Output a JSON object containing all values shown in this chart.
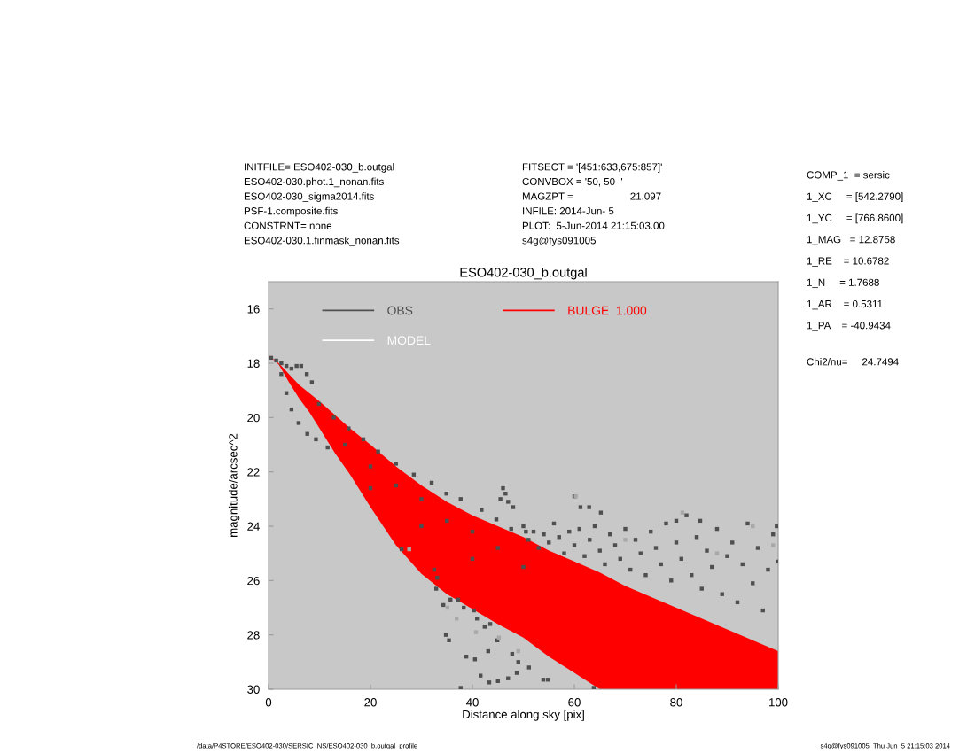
{
  "chart_data": {
    "type": "scatter",
    "title": "ESO402-030_b.outgal",
    "xlabel": "Distance along sky [pix]",
    "ylabel": "magnitude/arcsec^2",
    "xlim": [
      0,
      100
    ],
    "xticks": [
      0,
      20,
      40,
      60,
      80,
      100
    ],
    "ylim": [
      30,
      15
    ],
    "yticks": [
      16,
      18,
      20,
      22,
      24,
      26,
      28,
      30
    ],
    "legend": "top left",
    "series": [
      {
        "name": "OBS",
        "marker": "square",
        "color": "#4f4f4f",
        "x": [
          0.5,
          1.5,
          2.5,
          3.5,
          4.5,
          5.5,
          6.4,
          7.5,
          8.5,
          9.9,
          2.5,
          3.5,
          4.5,
          5.9,
          7.6,
          9.3,
          11.6,
          12.8,
          15.7,
          18.6,
          21.5,
          25,
          28.5,
          32,
          34.9,
          37.7,
          41.8,
          44.7,
          47.6,
          50.5,
          45.5,
          46,
          46.5,
          47,
          48,
          15,
          20,
          25,
          30,
          35,
          40,
          45,
          20,
          30,
          40,
          50,
          26.1,
          32.5,
          33.1,
          32.9,
          34.3,
          35.7,
          34.8,
          35.4,
          38.8,
          40.5,
          41.6,
          43.3,
          45,
          43.1,
          42.4,
          43.5,
          44.9,
          47.8,
          49,
          48.7,
          47,
          37.7,
          40.9,
          38.3,
          37.2,
          40.3,
          51.1,
          53.9,
          54.8,
          63.8,
          50,
          51,
          52,
          53,
          54,
          55,
          56,
          57,
          58,
          59,
          60,
          60,
          61,
          62,
          63,
          64,
          65,
          66,
          67,
          68,
          69,
          70,
          71,
          72,
          73,
          74,
          75,
          76,
          77,
          78,
          79,
          80,
          81,
          82,
          83,
          84,
          85,
          86,
          87,
          88,
          89,
          90,
          91,
          92,
          93,
          94,
          95,
          96,
          97,
          98,
          99,
          100,
          61.2,
          62.9,
          65.2,
          80,
          84.7,
          99.7
        ],
        "values": [
          17.8,
          17.9,
          18.0,
          18.1,
          18.2,
          18.1,
          18.1,
          18.4,
          18.7,
          19.5,
          18.4,
          19.1,
          19.7,
          20.2,
          20.6,
          20.8,
          21.1,
          20.0,
          20.4,
          20.8,
          21.25,
          21.7,
          22.1,
          22.4,
          22.8,
          23.0,
          23.4,
          23.75,
          24.1,
          24.2,
          23.0,
          22.6,
          22.8,
          23.1,
          23.3,
          21.0,
          21.8,
          22.5,
          23.0,
          23.8,
          24.2,
          24.8,
          22.6,
          24.0,
          25.2,
          25.5,
          24.85,
          25.6,
          25.9,
          26.3,
          26.9,
          26.7,
          28.0,
          28.2,
          28.8,
          28.9,
          29.5,
          29.75,
          29.7,
          28.6,
          27.7,
          27.6,
          28.2,
          28.7,
          29.0,
          29.4,
          29.6,
          29.95,
          27.4,
          27.0,
          26.7,
          27.1,
          29.2,
          29.65,
          29.65,
          29.95,
          24.0,
          24.5,
          24.2,
          24.8,
          24.3,
          24.6,
          23.9,
          24.4,
          25.0,
          24.2,
          24.7,
          22.9,
          24.1,
          25.1,
          24.5,
          24.0,
          24.9,
          25.4,
          24.3,
          24.7,
          25.2,
          24.1,
          25.6,
          24.5,
          25.0,
          25.8,
          24.2,
          24.8,
          25.4,
          23.9,
          26.0,
          24.6,
          25.2,
          23.6,
          25.8,
          24.4,
          26.3,
          24.9,
          25.5,
          24.1,
          26.5,
          25.1,
          24.6,
          26.8,
          25.4,
          23.9,
          26.1,
          24.8,
          27.1,
          25.6,
          24.3,
          25.3,
          23.3,
          23.3,
          23.5,
          23.8,
          23.8,
          24.0
        ]
      },
      {
        "name": "MODEL",
        "type": "line",
        "color": "#ffffff"
      },
      {
        "name": "BULGE  1.000",
        "type": "line",
        "color": "#ff0000",
        "x": [
          0,
          2,
          4,
          6,
          8,
          10,
          13,
          16,
          20,
          25,
          30,
          35,
          40,
          45,
          50,
          55,
          60,
          65,
          70,
          75,
          80,
          85,
          90,
          95,
          100
        ],
        "values": [
          null,
          null,
          null,
          null,
          null,
          null,
          null,
          null,
          null,
          null,
          null,
          null,
          null,
          null,
          null,
          null,
          null,
          null,
          null,
          null,
          null,
          null,
          null,
          null,
          null
        ],
        "lower": [
          17.7,
          18.0,
          18.4,
          18.8,
          19.1,
          19.4,
          19.9,
          20.4,
          21.0,
          21.8,
          22.5,
          23.1,
          23.6,
          24.0,
          24.4,
          24.9,
          25.3,
          25.7,
          26.2,
          26.6,
          27.0,
          27.4,
          27.8,
          28.2,
          28.6
        ],
        "upper": [
          17.7,
          18.05,
          18.7,
          19.3,
          19.8,
          20.4,
          21.3,
          22.1,
          23.3,
          24.7,
          25.75,
          26.5,
          27.05,
          27.6,
          28.1,
          28.8,
          29.4,
          30,
          30,
          30,
          30,
          30,
          30,
          30,
          30
        ]
      },
      {
        "marker": "square",
        "color": "#a8a8a8",
        "x": [
          27.6,
          35.1,
          36.9,
          40.7,
          45.2,
          49,
          60.3,
          81.2,
          70,
          88,
          95,
          99
        ],
        "values": [
          24.85,
          27.0,
          27.4,
          27.9,
          28.1,
          28.6,
          22.9,
          23.5,
          24.5,
          25.0,
          24.0,
          24.7
        ]
      }
    ],
    "annotations": [
      "INITFILE= ESO402-030_b.outgal\nESO402-030.phot.1_nonan.fits\nESO402-030_sigma2014.fits\nPSF-1.composite.fits\nCONSTRNT= none\nESO402-030.1.finmask_nonan.fits",
      "FITSECT = '[451:633,675:857]'\nCONVBOX = '50, 50  '\nMAGZPT =                    21.097\nINFILE: 2014-Jun- 5\nPLOT:  5-Jun-2014 21:15:03.00\ns4g@fys091005",
      "COMP_1  = sersic\n1_XC     = [542.2790]\n1_YC     = [766.8600]\n1_MAG   = 12.8758\n1_RE    = 10.6782\n1_N     = 1.7688\n1_AR    = 0.5311\n1_PA    = -40.9434",
      "Chi2/nu=     24.7494",
      "/data/P4STORE/ESO402-030/SERSIC_NS/ESO402-030_b.outgal_profile",
      "s4g@fys091005  Thu Jun  5 21:15:03 2014"
    ]
  }
}
